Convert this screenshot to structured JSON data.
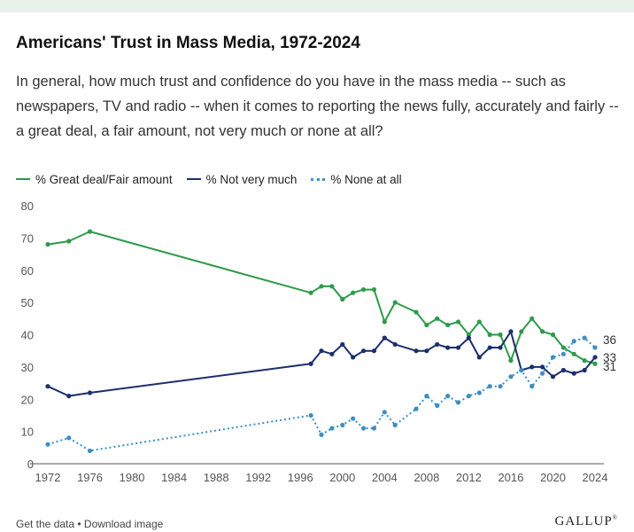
{
  "header": {
    "title": "Americans' Trust in Mass Media, 1972-2024",
    "subtitle": "In general, how much trust and confidence do you have in the mass media -- such as newspapers, TV and radio -- when it comes to reporting the news fully, accurately and fairly -- a great deal, a fair amount, not very much or none at all?"
  },
  "footer": {
    "get_data": "Get the data",
    "separator": " • ",
    "download": "Download image",
    "brand": "GALLUP"
  },
  "chart_data": {
    "type": "line",
    "xlim": [
      1972,
      2024
    ],
    "ylim": [
      0,
      80
    ],
    "x_ticks": [
      "1972",
      "1976",
      "1980",
      "1984",
      "1988",
      "1992",
      "1996",
      "2000",
      "2004",
      "2008",
      "2012",
      "2016",
      "2020",
      "2024"
    ],
    "y_ticks": [
      "0",
      "10",
      "20",
      "30",
      "40",
      "50",
      "60",
      "70",
      "80"
    ],
    "grid": "none",
    "legend": "top-left",
    "series": [
      {
        "name": "% Great deal/Fair amount",
        "color": "#2e9a4a",
        "style": "solid",
        "end_label": "31",
        "points": [
          [
            1972,
            68
          ],
          [
            1974,
            69
          ],
          [
            1976,
            72
          ],
          [
            1997,
            53
          ],
          [
            1998,
            55
          ],
          [
            1999,
            55
          ],
          [
            2000,
            51
          ],
          [
            2001,
            53
          ],
          [
            2002,
            54
          ],
          [
            2003,
            54
          ],
          [
            2004,
            44
          ],
          [
            2005,
            50
          ],
          [
            2007,
            47
          ],
          [
            2008,
            43
          ],
          [
            2009,
            45
          ],
          [
            2010,
            43
          ],
          [
            2011,
            44
          ],
          [
            2012,
            40
          ],
          [
            2013,
            44
          ],
          [
            2014,
            40
          ],
          [
            2015,
            40
          ],
          [
            2016,
            32
          ],
          [
            2017,
            41
          ],
          [
            2018,
            45
          ],
          [
            2019,
            41
          ],
          [
            2020,
            40
          ],
          [
            2021,
            36
          ],
          [
            2022,
            34
          ],
          [
            2023,
            32
          ],
          [
            2024,
            31
          ]
        ]
      },
      {
        "name": "% Not very much",
        "color": "#1b2f6b",
        "style": "solid",
        "end_label": "33",
        "points": [
          [
            1972,
            24
          ],
          [
            1974,
            21
          ],
          [
            1976,
            22
          ],
          [
            1997,
            31
          ],
          [
            1998,
            35
          ],
          [
            1999,
            34
          ],
          [
            2000,
            37
          ],
          [
            2001,
            33
          ],
          [
            2002,
            35
          ],
          [
            2003,
            35
          ],
          [
            2004,
            39
          ],
          [
            2005,
            37
          ],
          [
            2007,
            35
          ],
          [
            2008,
            35
          ],
          [
            2009,
            37
          ],
          [
            2010,
            36
          ],
          [
            2011,
            36
          ],
          [
            2012,
            39
          ],
          [
            2013,
            33
          ],
          [
            2014,
            36
          ],
          [
            2015,
            36
          ],
          [
            2016,
            41
          ],
          [
            2017,
            29
          ],
          [
            2018,
            30
          ],
          [
            2019,
            30
          ],
          [
            2020,
            27
          ],
          [
            2021,
            29
          ],
          [
            2022,
            28
          ],
          [
            2023,
            29
          ],
          [
            2024,
            33
          ]
        ]
      },
      {
        "name": "% None at all",
        "color": "#3b8fc4",
        "style": "dotted",
        "end_label": "36",
        "points": [
          [
            1972,
            6
          ],
          [
            1974,
            8
          ],
          [
            1976,
            4
          ],
          [
            1997,
            15
          ],
          [
            1998,
            9
          ],
          [
            1999,
            11
          ],
          [
            2000,
            12
          ],
          [
            2001,
            14
          ],
          [
            2002,
            11
          ],
          [
            2003,
            11
          ],
          [
            2004,
            16
          ],
          [
            2005,
            12
          ],
          [
            2007,
            17
          ],
          [
            2008,
            21
          ],
          [
            2009,
            18
          ],
          [
            2010,
            21
          ],
          [
            2011,
            19
          ],
          [
            2012,
            21
          ],
          [
            2013,
            22
          ],
          [
            2014,
            24
          ],
          [
            2015,
            24
          ],
          [
            2016,
            27
          ],
          [
            2017,
            29
          ],
          [
            2018,
            24
          ],
          [
            2019,
            28
          ],
          [
            2020,
            33
          ],
          [
            2021,
            34
          ],
          [
            2022,
            38
          ],
          [
            2023,
            39
          ],
          [
            2024,
            36
          ]
        ]
      }
    ]
  }
}
